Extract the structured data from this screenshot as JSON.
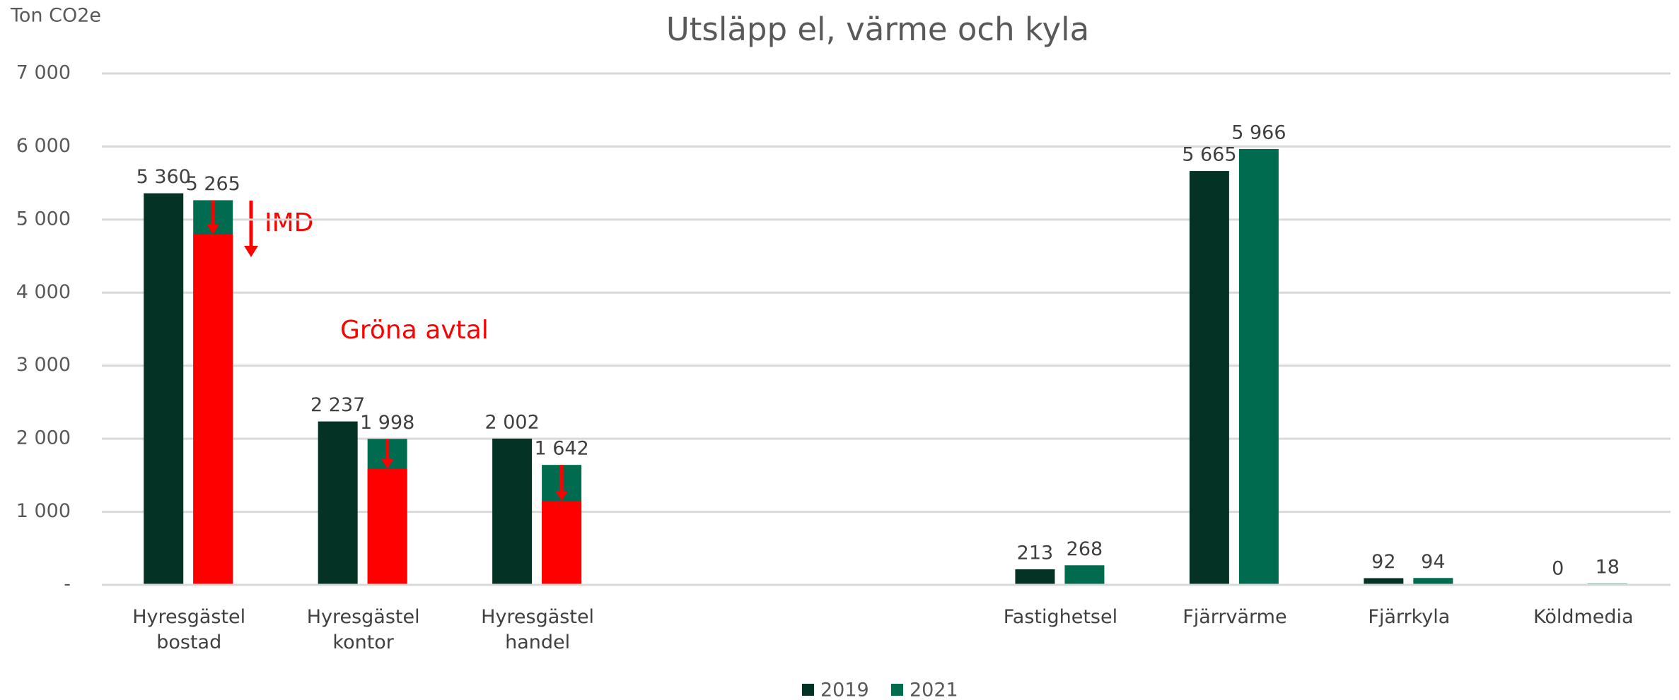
{
  "chart_data": {
    "type": "bar",
    "title": "Utsläpp el, värme och kyla",
    "y_label": "Ton CO2e",
    "categories": [
      "Hyresgästel\nbostad",
      "Hyresgästel\nkontor",
      "Hyresgästel\nhandel",
      null,
      null,
      "Fastighetsel",
      "Fjärrvärme",
      "Fjärrkyla",
      "Köldmedia"
    ],
    "series": [
      {
        "name": "2019",
        "color": "#043326",
        "values": [
          5360,
          2237,
          2002,
          null,
          null,
          213,
          5665,
          92,
          0
        ],
        "value_labels": [
          "5 360",
          "2 237",
          "2 002",
          null,
          null,
          "213",
          "5 665",
          "92",
          "0"
        ]
      },
      {
        "name": "2021",
        "color": "#006b4f",
        "values": [
          5265,
          1998,
          1642,
          null,
          null,
          268,
          5966,
          94,
          18
        ],
        "value_labels": [
          "5 265",
          "1 998",
          "1 642",
          null,
          null,
          "268",
          "5 966",
          "94",
          "18"
        ]
      }
    ],
    "reduced": {
      "color": "#ff0000",
      "values": [
        4800,
        1590,
        1150,
        null,
        null,
        null,
        null,
        null,
        null
      ]
    },
    "annotations": [
      "IMD",
      "Gröna avtal"
    ],
    "ylim": [
      0,
      7000
    ],
    "yticks": [
      {
        "value": 0,
        "label": "-"
      },
      {
        "value": 1000,
        "label": "1 000"
      },
      {
        "value": 2000,
        "label": "2 000"
      },
      {
        "value": 3000,
        "label": "3 000"
      },
      {
        "value": 4000,
        "label": "4 000"
      },
      {
        "value": 5000,
        "label": "5 000"
      },
      {
        "value": 6000,
        "label": "6 000"
      },
      {
        "value": 7000,
        "label": "7 000"
      }
    ],
    "grid": true,
    "legend": "bottom"
  }
}
